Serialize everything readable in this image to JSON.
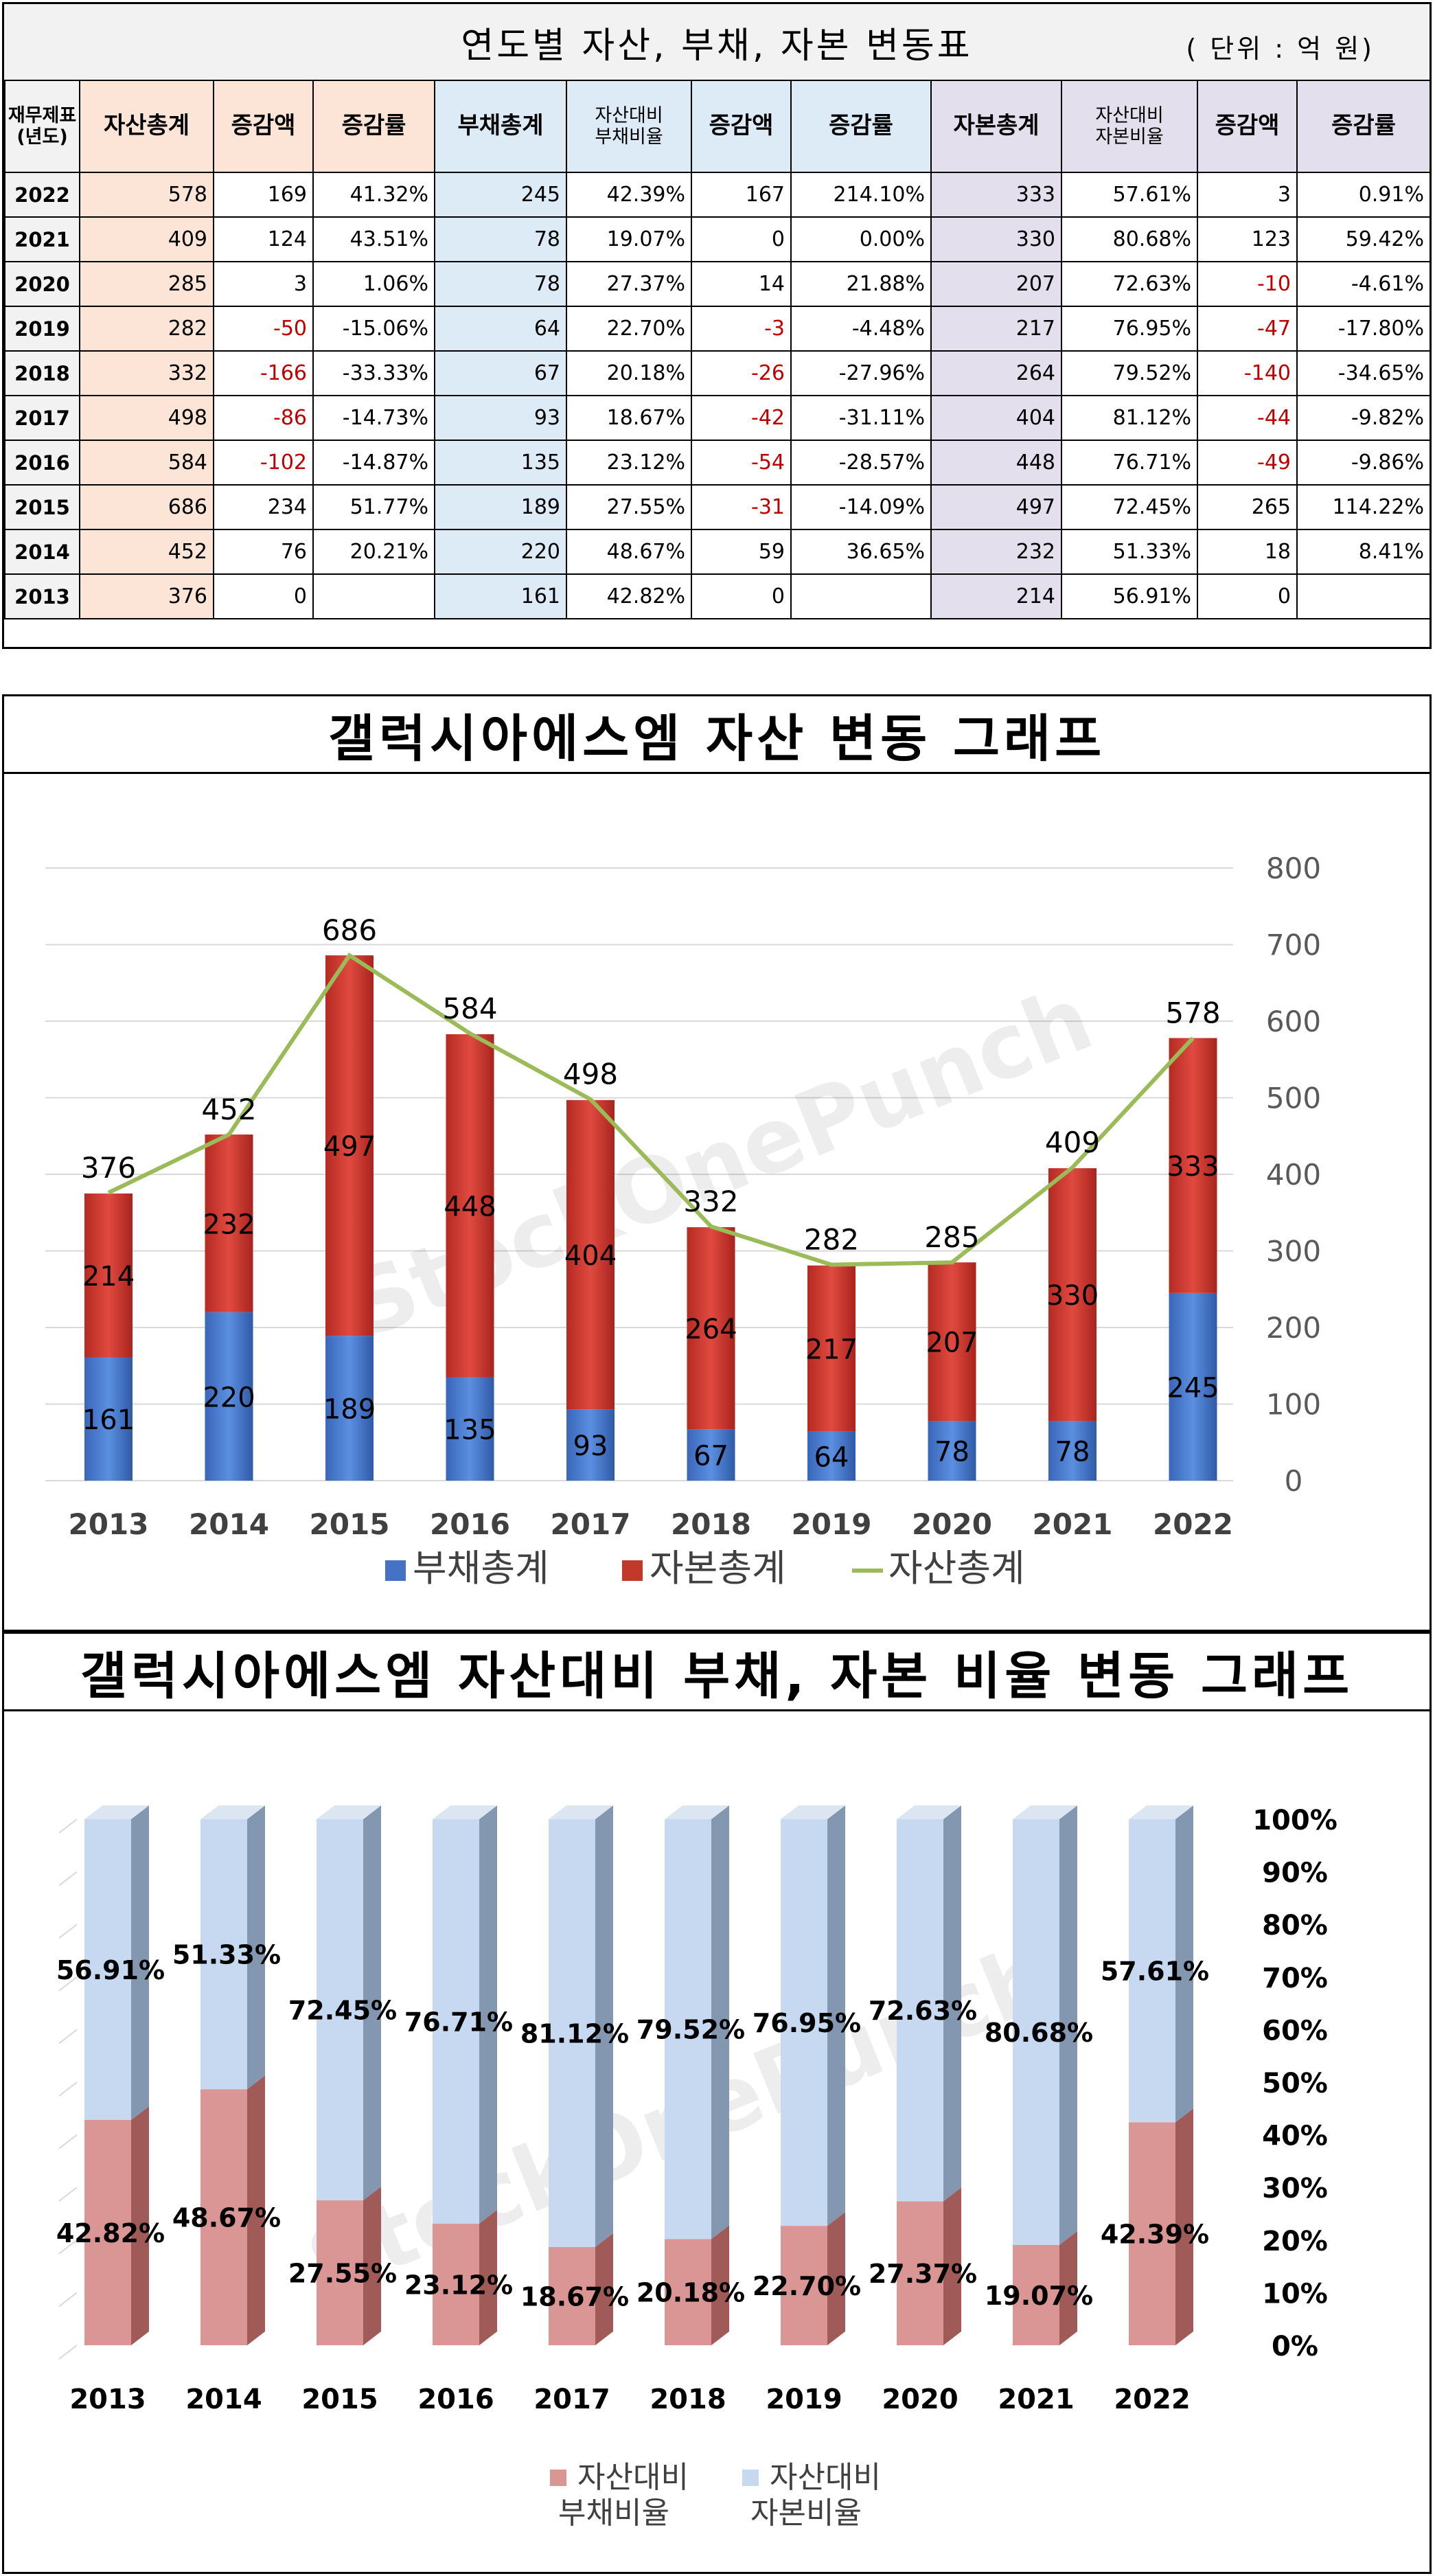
{
  "table_section": {
    "title": "연도별 자산, 부채, 자본 변동표",
    "unit": "( 단위 : 억 원)",
    "headers": [
      "재무제표\n(년도)",
      "자산총계",
      "증감액",
      "증감률",
      "부채총계",
      "자산대비\n부채비율",
      "증감액",
      "증감률",
      "자본총계",
      "자산대비\n자본비율",
      "증감액",
      "증감률"
    ],
    "rows": [
      [
        "2022",
        "578",
        "169",
        "41.32%",
        "245",
        "42.39%",
        "167",
        "214.10%",
        "333",
        "57.61%",
        "3",
        "0.91%"
      ],
      [
        "2021",
        "409",
        "124",
        "43.51%",
        "78",
        "19.07%",
        "0",
        "0.00%",
        "330",
        "80.68%",
        "123",
        "59.42%"
      ],
      [
        "2020",
        "285",
        "3",
        "1.06%",
        "78",
        "27.37%",
        "14",
        "21.88%",
        "207",
        "72.63%",
        "-10",
        "-4.61%"
      ],
      [
        "2019",
        "282",
        "-50",
        "-15.06%",
        "64",
        "22.70%",
        "-3",
        "-4.48%",
        "217",
        "76.95%",
        "-47",
        "-17.80%"
      ],
      [
        "2018",
        "332",
        "-166",
        "-33.33%",
        "67",
        "20.18%",
        "-26",
        "-27.96%",
        "264",
        "79.52%",
        "-140",
        "-34.65%"
      ],
      [
        "2017",
        "498",
        "-86",
        "-14.73%",
        "93",
        "18.67%",
        "-42",
        "-31.11%",
        "404",
        "81.12%",
        "-44",
        "-9.82%"
      ],
      [
        "2016",
        "584",
        "-102",
        "-14.87%",
        "135",
        "23.12%",
        "-54",
        "-28.57%",
        "448",
        "76.71%",
        "-49",
        "-9.86%"
      ],
      [
        "2015",
        "686",
        "234",
        "51.77%",
        "189",
        "27.55%",
        "-31",
        "-14.09%",
        "497",
        "72.45%",
        "265",
        "114.22%"
      ],
      [
        "2014",
        "452",
        "76",
        "20.21%",
        "220",
        "48.67%",
        "59",
        "36.65%",
        "232",
        "51.33%",
        "18",
        "8.41%"
      ],
      [
        "2013",
        "376",
        "0",
        "",
        "161",
        "42.82%",
        "0",
        "",
        "214",
        "56.91%",
        "0",
        ""
      ]
    ]
  },
  "chart_data": [
    {
      "type": "bar",
      "title": "갤럭시아에스엠 자산 변동 그래프",
      "categories": [
        "2013",
        "2014",
        "2015",
        "2016",
        "2017",
        "2018",
        "2019",
        "2020",
        "2021",
        "2022"
      ],
      "stacked": true,
      "series": [
        {
          "name": "부채총계",
          "type": "bar",
          "color": "#4472c4",
          "values": [
            161,
            220,
            189,
            135,
            93,
            67,
            64,
            78,
            78,
            245
          ]
        },
        {
          "name": "자본총계",
          "type": "bar",
          "color": "#c0392b",
          "values": [
            214,
            232,
            497,
            448,
            404,
            264,
            217,
            207,
            330,
            333
          ]
        },
        {
          "name": "자산총계",
          "type": "line",
          "color": "#9bbb59",
          "values": [
            376,
            452,
            686,
            584,
            498,
            332,
            282,
            285,
            409,
            578
          ]
        }
      ],
      "ylim": [
        0,
        800
      ],
      "yticks": [
        "0",
        "100",
        "200",
        "300",
        "400",
        "500",
        "600",
        "700",
        "800"
      ],
      "y_axis_side": "right",
      "legend": "bottom",
      "watermark": "StockOnePunch"
    },
    {
      "type": "bar",
      "title": "갤럭시아에스엠 자산대비 부채, 자본 비율 변동 그래프",
      "categories": [
        "2013",
        "2014",
        "2015",
        "2016",
        "2017",
        "2018",
        "2019",
        "2020",
        "2021",
        "2022"
      ],
      "stacked": true,
      "style": "3d-100%-stacked",
      "series": [
        {
          "name": "자산대비\n부채비율",
          "color": "#d99694",
          "values": [
            42.82,
            48.67,
            27.55,
            23.12,
            18.67,
            20.18,
            22.7,
            27.37,
            19.07,
            42.39
          ],
          "labels": [
            "42.82%",
            "48.67%",
            "27.55%",
            "23.12%",
            "18.67%",
            "20.18%",
            "22.70%",
            "27.37%",
            "19.07%",
            "42.39%"
          ]
        },
        {
          "name": "자산대비\n자본비율",
          "color": "#c6d9f1",
          "values": [
            56.91,
            51.33,
            72.45,
            76.71,
            81.12,
            79.52,
            76.95,
            72.63,
            80.68,
            57.61
          ],
          "labels": [
            "56.91%",
            "51.33%",
            "72.45%",
            "76.71%",
            "81.12%",
            "79.52%",
            "76.95%",
            "72.63%",
            "80.68%",
            "57.61%"
          ]
        }
      ],
      "ylim": [
        0,
        100
      ],
      "yticks": [
        "0%",
        "10%",
        "20%",
        "30%",
        "40%",
        "50%",
        "60%",
        "70%",
        "80%",
        "90%",
        "100%"
      ],
      "y_axis_side": "right",
      "legend": "bottom",
      "watermark": "StockOnePunch"
    }
  ]
}
